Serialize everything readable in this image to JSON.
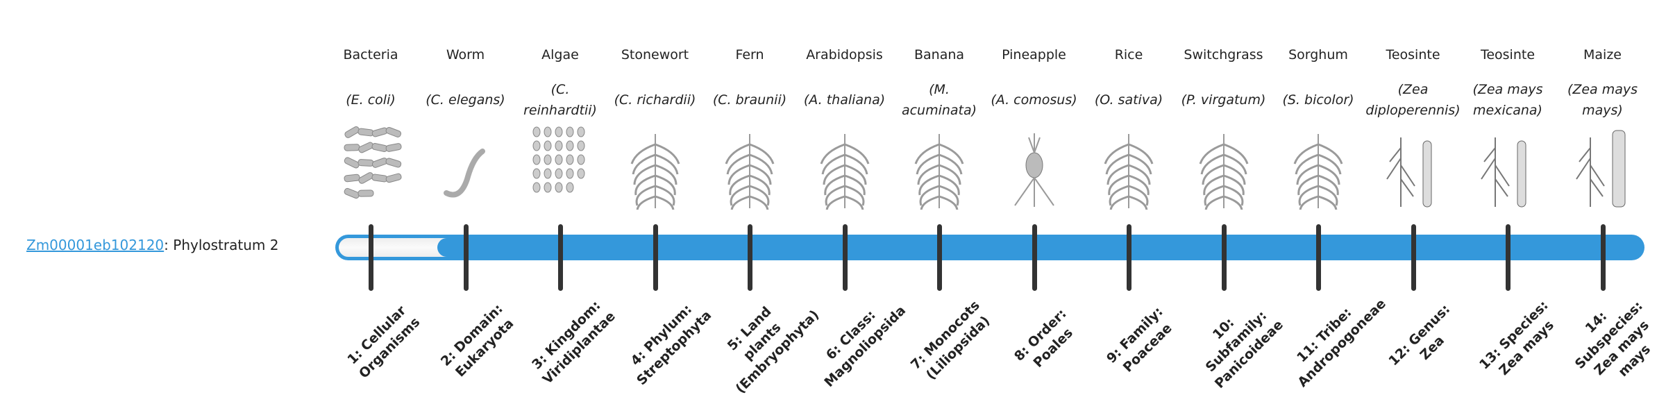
{
  "gene": {
    "id": "Zm00001eb102120",
    "suffix": ": Phylostratum 2",
    "phylostratum": 2
  },
  "colors": {
    "bar": "#3498db",
    "tick": "#333333",
    "link": "#3498db",
    "absent": "#f2f2f2"
  },
  "organisms": [
    {
      "common": "Bacteria",
      "scientific": "(E. coli)",
      "icon": "bacteria-icon"
    },
    {
      "common": "Worm",
      "scientific": "(C. elegans)",
      "icon": "worm-icon"
    },
    {
      "common": "Algae",
      "scientific": "(C. reinhardtii)",
      "icon": "algae-icon"
    },
    {
      "common": "Stonewort",
      "scientific": "(C. richardii)",
      "icon": "stonewort-icon"
    },
    {
      "common": "Fern",
      "scientific": "(C. braunii)",
      "icon": "fern-icon"
    },
    {
      "common": "Arabidopsis",
      "scientific": "(A. thaliana)",
      "icon": "arabidopsis-icon"
    },
    {
      "common": "Banana",
      "scientific": "(M. acuminata)",
      "icon": "banana-icon"
    },
    {
      "common": "Pineapple",
      "scientific": "(A. comosus)",
      "icon": "pineapple-icon"
    },
    {
      "common": "Rice",
      "scientific": "(O. sativa)",
      "icon": "rice-icon"
    },
    {
      "common": "Switchgrass",
      "scientific": "(P. virgatum)",
      "icon": "switchgrass-icon"
    },
    {
      "common": "Sorghum",
      "scientific": "(S. bicolor)",
      "icon": "sorghum-icon"
    },
    {
      "common": "Teosinte",
      "scientific": "(Zea diploperennis)",
      "icon": "teosinte-icon"
    },
    {
      "common": "Teosinte",
      "scientific": "(Zea mays mexicana)",
      "icon": "teosinte-icon"
    },
    {
      "common": "Maize",
      "scientific": "(Zea mays mays)",
      "icon": "maize-icon"
    }
  ],
  "ranks": [
    "1: Cellular Organisms",
    "2: Domain: Eukaryota",
    "3: Kingdom: Viridiplantae",
    "4: Phylum: Streptophyta",
    "5: Land plants (Embryophyta)",
    "6: Class: Magnoliopsida",
    "7: Monocots (Liliopsida)",
    "8: Order: Poales",
    "9: Family: Poaceae",
    "10: Subfamily: Panicoideae",
    "11: Tribe: Andropogoneae",
    "12: Genus: Zea",
    "13: Species: Zea mays",
    "14: Subspecies: Zea mays mays"
  ]
}
